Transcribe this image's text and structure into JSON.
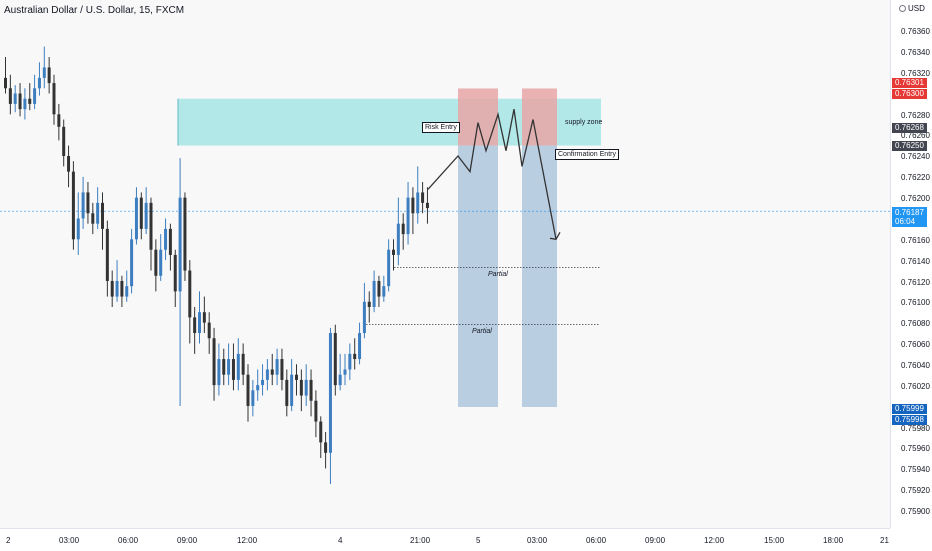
{
  "header": {
    "title": "Australian Dollar / U.S. Dollar, 15, FXCM"
  },
  "currency_label": "USD",
  "annotations": {
    "supply_zone": "supply zone",
    "risk_entry": "Risk Entry",
    "confirmation_entry": "Confirmation Entry",
    "partial_1": "Partial",
    "partial_2": "Partial"
  },
  "price_tags": {
    "upper_red_1": "0.76301",
    "upper_red_2": "0.76300",
    "gray_1": "0.76268",
    "gray_2": "0.76250",
    "current_price": "0.76187",
    "countdown": "06:04",
    "lower_blue_1": "0.75999",
    "lower_blue_2": "0.75998"
  },
  "colors": {
    "up_candle": "#3c7ec0",
    "down_candle": "#333333",
    "supply_zone": "#b3e8e8",
    "stop_zone": "#e8a6a6",
    "target_zone": "#b3c9df",
    "current_price": "#2196f3",
    "stop_tag": "#e53935",
    "gray_tag": "#434651"
  },
  "chart_data": {
    "type": "candlestick",
    "symbol": "AUDUSD",
    "timeframe": "15",
    "source": "FXCM",
    "y_axis_ticks": [
      "0.76360",
      "0.76340",
      "0.76320",
      "0.76280",
      "0.76260",
      "0.76240",
      "0.76220",
      "0.76200",
      "0.76160",
      "0.76140",
      "0.76120",
      "0.76100",
      "0.76080",
      "0.76060",
      "0.76040",
      "0.76020",
      "0.75980",
      "0.75960",
      "0.75940",
      "0.75920",
      "0.75900"
    ],
    "x_axis_ticks": [
      "2",
      "03:00",
      "06:00",
      "09:00",
      "12:00",
      "4",
      "21:00",
      "5",
      "03:00",
      "06:00",
      "09:00",
      "12:00",
      "15:00",
      "18:00",
      "21"
    ],
    "ylim": [
      0.7589,
      0.7637
    ],
    "current_price": 0.76187,
    "supply_zone": [
      0.7625,
      0.76295
    ],
    "trade_boxes": [
      {
        "entry": 0.7625,
        "stop": 0.763,
        "target": 0.75999
      },
      {
        "entry": 0.7625,
        "stop": 0.763,
        "target": 0.75999
      }
    ],
    "partial_levels": [
      0.76133,
      0.76078
    ],
    "projection_path": [
      0.76208,
      0.7624,
      0.76225,
      0.76272,
      0.76245,
      0.7628,
      0.76245,
      0.76285,
      0.7623,
      0.76275,
      0.7616
    ]
  }
}
